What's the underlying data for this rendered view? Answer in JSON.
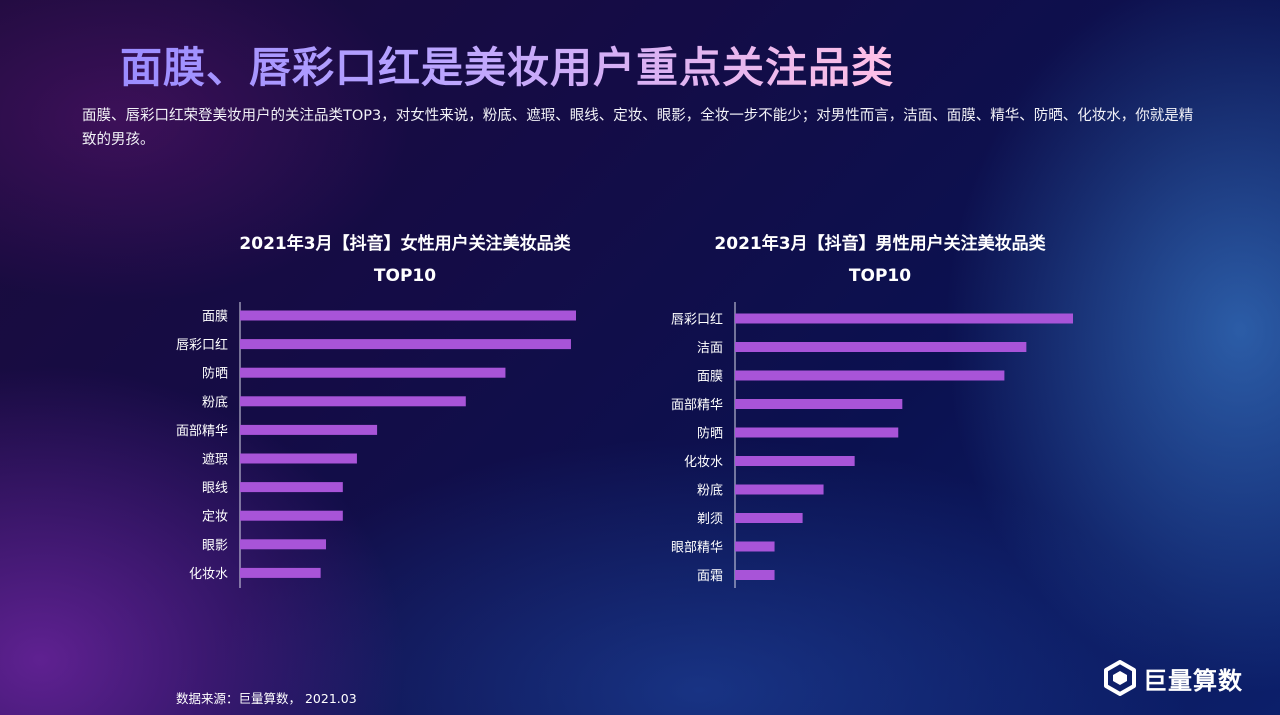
{
  "header": {
    "title": "面膜、唇彩口红是美妆用户重点关注品类",
    "description": "面膜、唇彩口红荣登美妆用户的关注品类TOP3，对女性来说，粉底、遮瑕、眼线、定妆、眼影，全妆一步不能少；对男性而言，洁面、面膜、精华、防晒、化妆水，你就是精致的男孩。"
  },
  "footer": {
    "source": "数据来源：巨量算数， 2021.03",
    "brand": "巨量算数"
  },
  "colors": {
    "bar": "#a854d8",
    "axis": "#d8d8e8"
  },
  "chart_data": [
    {
      "type": "bar",
      "orientation": "horizontal",
      "title": "2021年3月【抖音】女性用户关注美妆品类",
      "subtitle": "TOP10",
      "categories": [
        "面膜",
        "唇彩口红",
        "防晒",
        "粉底",
        "面部精华",
        "遮瑕",
        "眼线",
        "定妆",
        "眼影",
        "化妆水"
      ],
      "values": [
        100,
        98.5,
        79,
        67.2,
        40.8,
        34.8,
        30.6,
        30.6,
        25.6,
        24
      ],
      "xlim": [
        0,
        100
      ],
      "grid": false,
      "legend": "none"
    },
    {
      "type": "bar",
      "orientation": "horizontal",
      "title": "2021年3月【抖音】男性用户关注美妆品类",
      "subtitle": "TOP10",
      "categories": [
        "唇彩口红",
        "洁面",
        "面膜",
        "面部精华",
        "防晒",
        "化妆水",
        "粉底",
        "剃须",
        "眼部精华",
        "面霜"
      ],
      "values": [
        100,
        86.2,
        79.7,
        49.5,
        48.3,
        35.4,
        26.2,
        20,
        11.7,
        11.7
      ],
      "xlim": [
        0,
        100
      ],
      "grid": false,
      "legend": "none"
    }
  ]
}
